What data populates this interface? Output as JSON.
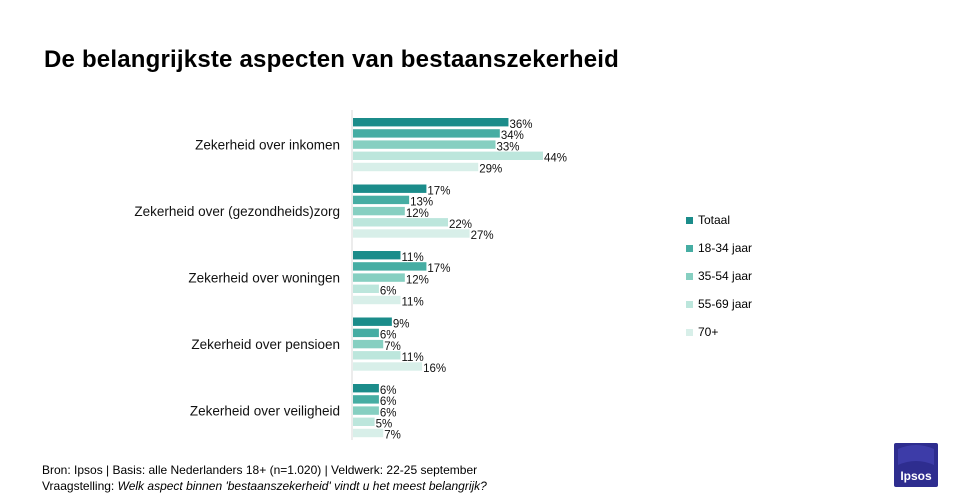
{
  "title": "De belangrijkste aspecten van bestaanszekerheid",
  "legend": {
    "items": [
      {
        "name": "Totaal",
        "color": "#1b8c8a"
      },
      {
        "name": "18-34 jaar",
        "color": "#46ada3"
      },
      {
        "name": "35-54 jaar",
        "color": "#86cfc1"
      },
      {
        "name": "55-69 jaar",
        "color": "#bce6dc"
      },
      {
        "name": "70+",
        "color": "#d8efe9"
      }
    ]
  },
  "footer": {
    "source": "Bron: Ipsos | Basis: alle Nederlanders  18+ (n=1.020) | Veldwerk: 22-25  september",
    "question_label": "Vraagstelling: ",
    "question_text": "Welk aspect binnen 'bestaanszekerheid' vindt u het meest belangrijk?"
  },
  "logo": {
    "text": "Ipsos",
    "color": "#2e2d8f"
  },
  "chart_data": {
    "type": "bar",
    "orientation": "horizontal",
    "categories": [
      "Zekerheid over inkomen",
      "Zekerheid over (gezondheids)zorg",
      "Zekerheid over woningen",
      "Zekerheid over pensioen",
      "Zekerheid over veiligheid"
    ],
    "series": [
      {
        "name": "Totaal",
        "values": [
          36,
          17,
          11,
          9,
          6
        ]
      },
      {
        "name": "18-34 jaar",
        "values": [
          34,
          13,
          17,
          6,
          6
        ]
      },
      {
        "name": "35-54 jaar",
        "values": [
          33,
          12,
          12,
          7,
          6
        ]
      },
      {
        "name": "55-69 jaar",
        "values": [
          44,
          22,
          6,
          11,
          5
        ]
      },
      {
        "name": "70+",
        "values": [
          29,
          27,
          11,
          16,
          7
        ]
      }
    ],
    "value_suffix": "%",
    "xlim": [
      0,
      50
    ],
    "legend_position": "right",
    "grid": false
  }
}
